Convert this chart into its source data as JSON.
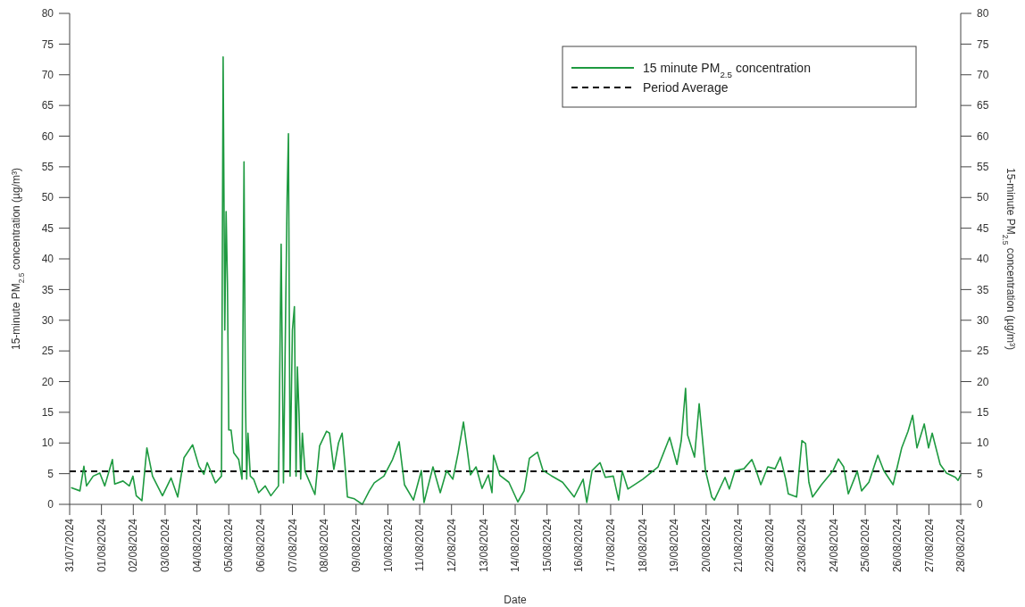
{
  "chart_data": {
    "type": "line",
    "xlabel": "Date",
    "ylabel": "15-minute PM$_{2.5}$ concentration (µg/m³)",
    "y2label": "15-minute PM$_{2.5}$ concentration (µg/m³)",
    "xlim": [
      "2024-07-31",
      "2024-08-28"
    ],
    "xticks": [
      {
        "value": "2024-07-31",
        "label": "31/07/2024"
      },
      {
        "value": "2024-08-01",
        "label": "01/08/2024"
      },
      {
        "value": "2024-08-02",
        "label": "02/08/2024"
      },
      {
        "value": "2024-08-03",
        "label": "03/08/2024"
      },
      {
        "value": "2024-08-04",
        "label": "04/08/2024"
      },
      {
        "value": "2024-08-05",
        "label": "05/08/2024"
      },
      {
        "value": "2024-08-06",
        "label": "06/08/2024"
      },
      {
        "value": "2024-08-07",
        "label": "07/08/2024"
      },
      {
        "value": "2024-08-08",
        "label": "08/08/2024"
      },
      {
        "value": "2024-08-09",
        "label": "09/08/2024"
      },
      {
        "value": "2024-08-10",
        "label": "10/08/2024"
      },
      {
        "value": "2024-08-11",
        "label": "11/08/2024"
      },
      {
        "value": "2024-08-12",
        "label": "12/08/2024"
      },
      {
        "value": "2024-08-13",
        "label": "13/08/2024"
      },
      {
        "value": "2024-08-14",
        "label": "14/08/2024"
      },
      {
        "value": "2024-08-15",
        "label": "15/08/2024"
      },
      {
        "value": "2024-08-16",
        "label": "16/08/2024"
      },
      {
        "value": "2024-08-17",
        "label": "17/08/2024"
      },
      {
        "value": "2024-08-18",
        "label": "18/08/2024"
      },
      {
        "value": "2024-08-19",
        "label": "19/08/2024"
      },
      {
        "value": "2024-08-20",
        "label": "20/08/2024"
      },
      {
        "value": "2024-08-21",
        "label": "21/08/2024"
      },
      {
        "value": "2024-08-22",
        "label": "22/08/2024"
      },
      {
        "value": "2024-08-23",
        "label": "23/08/2024"
      },
      {
        "value": "2024-08-24",
        "label": "24/08/2024"
      },
      {
        "value": "2024-08-25",
        "label": "25/08/2024"
      },
      {
        "value": "2024-08-26",
        "label": "26/08/2024"
      },
      {
        "value": "2024-08-27",
        "label": "27/08/2024"
      },
      {
        "value": "2024-08-28",
        "label": "28/08/2024"
      }
    ],
    "ylim": [
      0,
      80
    ],
    "yticks": [
      0,
      5,
      10,
      15,
      20,
      25,
      30,
      35,
      40,
      45,
      50,
      55,
      60,
      65,
      70,
      75,
      80
    ],
    "y2lim": [
      0,
      80
    ],
    "y2ticks": [
      0,
      5,
      10,
      15,
      20,
      25,
      30,
      35,
      40,
      45,
      50,
      55,
      60,
      65,
      70,
      75,
      80
    ],
    "grid": false,
    "legend": "top right",
    "marker": "none",
    "ref_lines": [
      {
        "axis": "y",
        "value": 5.4,
        "label": "Period Average",
        "color": "#000000",
        "line_style": "dashed"
      }
    ],
    "series": [
      {
        "name": "15 minute PM$_{2.5}$ concentration",
        "color": "#1e9a40",
        "line_style": "solid",
        "x": [
          "2024-07-31T01:30",
          "2024-07-31T07:45",
          "2024-07-31T10:45",
          "2024-07-31T12:45",
          "2024-07-31T17:45",
          "2024-07-31T22:45",
          "2024-08-01T02:30",
          "2024-08-01T08:15",
          "2024-08-01T10:00",
          "2024-08-01T16:15",
          "2024-08-01T21:00",
          "2024-08-01T23:45",
          "2024-08-02T02:15",
          "2024-08-02T06:30",
          "2024-08-02T10:15",
          "2024-08-02T14:30",
          "2024-08-02T22:00",
          "2024-08-03T04:30",
          "2024-08-03T09:30",
          "2024-08-03T14:15",
          "2024-08-03T20:45",
          "2024-08-04T01:30",
          "2024-08-04T05:15",
          "2024-08-04T07:45",
          "2024-08-04T14:00",
          "2024-08-04T18:30",
          "2024-08-04T19:45",
          "2024-08-04T21:00",
          "2024-08-04T22:00",
          "2024-08-04T23:00",
          "2024-08-05T00:00",
          "2024-08-05T01:45",
          "2024-08-05T03:45",
          "2024-08-05T07:30",
          "2024-08-05T10:00",
          "2024-08-05T11:30",
          "2024-08-05T12:30",
          "2024-08-05T13:30",
          "2024-08-05T14:30",
          "2024-08-05T16:15",
          "2024-08-05T18:45",
          "2024-08-05T22:30",
          "2024-08-06T03:30",
          "2024-08-06T07:45",
          "2024-08-06T13:30",
          "2024-08-06T15:30",
          "2024-08-06T17:15",
          "2024-08-06T20:00",
          "2024-08-06T21:00",
          "2024-08-06T22:15",
          "2024-08-07T00:00",
          "2024-08-07T01:30",
          "2024-08-07T02:45",
          "2024-08-07T03:45",
          "2024-08-07T05:00",
          "2024-08-07T06:15",
          "2024-08-07T07:30",
          "2024-08-07T09:30",
          "2024-08-07T17:00",
          "2024-08-07T20:30",
          "2024-08-08T01:45",
          "2024-08-08T04:00",
          "2024-08-08T07:15",
          "2024-08-08T10:45",
          "2024-08-08T13:30",
          "2024-08-08T15:30",
          "2024-08-08T17:30",
          "2024-08-08T22:45",
          "2024-08-09T04:45",
          "2024-08-09T10:00",
          "2024-08-09T13:45",
          "2024-08-09T21:00",
          "2024-08-10T03:30",
          "2024-08-10T08:30",
          "2024-08-10T12:30",
          "2024-08-10T19:15",
          "2024-08-11T01:15",
          "2024-08-11T03:15",
          "2024-08-11T10:00",
          "2024-08-11T15:30",
          "2024-08-11T20:15",
          "2024-08-12T01:00",
          "2024-08-12T05:00",
          "2024-08-12T09:00",
          "2024-08-12T11:45",
          "2024-08-12T14:15",
          "2024-08-12T18:30",
          "2024-08-12T23:00",
          "2024-08-13T03:45",
          "2024-08-13T06:30",
          "2024-08-13T07:45",
          "2024-08-13T12:30",
          "2024-08-13T19:15",
          "2024-08-14T02:00",
          "2024-08-14T06:45",
          "2024-08-14T10:45",
          "2024-08-14T16:45",
          "2024-08-14T21:00",
          "2024-08-15T03:00",
          "2024-08-15T11:45",
          "2024-08-15T20:30",
          "2024-08-16T03:15",
          "2024-08-16T06:00",
          "2024-08-16T10:00",
          "2024-08-16T16:00",
          "2024-08-16T20:00",
          "2024-08-17T02:00",
          "2024-08-17T06:00",
          "2024-08-17T08:45",
          "2024-08-17T13:00",
          "2024-08-18T00:15",
          "2024-08-18T11:45",
          "2024-08-18T20:30",
          "2024-08-19T02:00",
          "2024-08-19T05:15",
          "2024-08-19T08:30",
          "2024-08-19T10:00",
          "2024-08-19T15:15",
          "2024-08-19T18:45",
          "2024-08-19T23:30",
          "2024-08-20T04:15",
          "2024-08-20T06:15",
          "2024-08-20T14:15",
          "2024-08-20T17:30",
          "2024-08-20T21:45",
          "2024-08-21T04:30",
          "2024-08-21T10:30",
          "2024-08-21T13:45",
          "2024-08-21T17:15",
          "2024-08-21T22:30",
          "2024-08-22T04:00",
          "2024-08-22T08:00",
          "2024-08-22T12:00",
          "2024-08-22T14:00",
          "2024-08-22T20:15",
          "2024-08-23T00:15",
          "2024-08-23T03:00",
          "2024-08-23T05:30",
          "2024-08-23T08:15",
          "2024-08-23T15:00",
          "2024-08-23T23:45",
          "2024-08-24T03:45",
          "2024-08-24T07:45",
          "2024-08-24T11:15",
          "2024-08-24T18:00",
          "2024-08-24T21:15",
          "2024-08-25T02:45",
          "2024-08-25T09:30",
          "2024-08-25T14:00",
          "2024-08-25T21:00",
          "2024-08-26T03:30",
          "2024-08-26T08:15",
          "2024-08-26T11:45",
          "2024-08-26T15:00",
          "2024-08-26T20:30",
          "2024-08-26T23:45",
          "2024-08-27T02:30",
          "2024-08-27T08:30",
          "2024-08-27T13:15",
          "2024-08-27T20:00",
          "2024-08-27T22:00",
          "2024-08-28T00:00"
        ],
        "values": [
          2.7,
          2.2,
          6.2,
          3,
          4.6,
          5.1,
          3,
          7.3,
          3.3,
          3.8,
          3,
          4.6,
          1.4,
          0.6,
          9.2,
          4.6,
          1.4,
          4.3,
          1.2,
          7.6,
          9.7,
          6.2,
          4.9,
          6.8,
          3.5,
          4.6,
          72.9,
          28.4,
          47.7,
          36.1,
          12.1,
          12.1,
          8.4,
          7.3,
          4.1,
          55.8,
          18.6,
          4.1,
          11.6,
          4.6,
          4.1,
          1.9,
          3,
          1.4,
          3,
          42.4,
          3.5,
          50,
          60.4,
          4.6,
          28.4,
          32.2,
          4.6,
          22.4,
          14.8,
          4.1,
          11.6,
          5.4,
          1.6,
          9.5,
          11.9,
          11.6,
          5.7,
          10,
          11.6,
          6.8,
          1.2,
          0.9,
          0,
          2.2,
          3.5,
          4.6,
          7.3,
          10.2,
          3.2,
          0.7,
          5.5,
          0.3,
          6.1,
          1.9,
          5.5,
          4.1,
          8.4,
          13.4,
          9,
          4.8,
          6.1,
          2.6,
          4.8,
          1.9,
          8,
          4.7,
          3.6,
          0.4,
          2.2,
          7.5,
          8.5,
          5.5,
          4.7,
          3.6,
          1.2,
          4.1,
          0.3,
          5.5,
          6.8,
          4.4,
          4.6,
          0.7,
          5.4,
          2.5,
          4.1,
          6.1,
          10.9,
          6.5,
          10.4,
          18.9,
          11.3,
          7.7,
          16.4,
          5.5,
          1.2,
          0.7,
          4.4,
          2.5,
          5.5,
          5.8,
          7.3,
          5.5,
          3.2,
          6.1,
          5.8,
          7.7,
          4.1,
          1.7,
          1.2,
          10.4,
          9.9,
          3.6,
          1.2,
          3.2,
          5.5,
          7.4,
          6.1,
          1.7,
          5.4,
          2.2,
          3.6,
          8,
          5.5,
          3.2,
          9.2,
          11.9,
          14.5,
          9.2,
          13.1,
          9.2,
          11.6,
          6.5,
          5.1,
          4.4,
          3.9,
          4.8
        ]
      }
    ]
  }
}
